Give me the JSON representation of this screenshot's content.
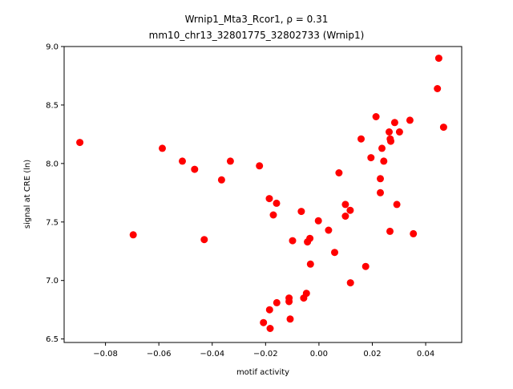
{
  "chart_data": {
    "type": "scatter",
    "title_lines": [
      "Wrnip1_Mta3_Rcor1, ρ = 0.31",
      "mm10_chr13_32801775_32802733 (Wrnip1)"
    ],
    "xlabel": "motif activity",
    "ylabel": "signal at CRE (ln)",
    "xlim": [
      -0.0955,
      0.0535
    ],
    "ylim": [
      6.47,
      9.0
    ],
    "xticks": [
      -0.08,
      -0.06,
      -0.04,
      -0.02,
      0.0,
      0.02,
      0.04
    ],
    "xtick_labels": [
      "−0.08",
      "−0.06",
      "−0.04",
      "−0.02",
      "0.00",
      "0.02",
      "0.04"
    ],
    "yticks": [
      6.5,
      7.0,
      7.5,
      8.0,
      8.5,
      9.0
    ],
    "ytick_labels": [
      "6.5",
      "7.0",
      "7.5",
      "8.0",
      "8.5",
      "9.0"
    ],
    "grid": false,
    "legend": "none",
    "color": "#ff0000",
    "points": [
      [
        -0.0896,
        8.18
      ],
      [
        -0.0696,
        7.39
      ],
      [
        -0.0587,
        8.13
      ],
      [
        -0.0512,
        8.02
      ],
      [
        -0.0466,
        7.95
      ],
      [
        -0.043,
        7.35
      ],
      [
        -0.0365,
        7.86
      ],
      [
        -0.0332,
        8.02
      ],
      [
        -0.0223,
        7.98
      ],
      [
        -0.0208,
        6.64
      ],
      [
        -0.0185,
        6.75
      ],
      [
        -0.0186,
        7.7
      ],
      [
        -0.0183,
        6.59
      ],
      [
        -0.0171,
        7.56
      ],
      [
        -0.0159,
        7.66
      ],
      [
        -0.0158,
        6.81
      ],
      [
        -0.0112,
        6.85
      ],
      [
        -0.0112,
        6.82
      ],
      [
        -0.0108,
        6.67
      ],
      [
        -0.0099,
        7.34
      ],
      [
        -0.0066,
        7.59
      ],
      [
        -0.0057,
        6.85
      ],
      [
        -0.0047,
        6.89
      ],
      [
        -0.0043,
        7.33
      ],
      [
        -0.0034,
        7.36
      ],
      [
        -0.0032,
        7.14
      ],
      [
        -0.0002,
        7.51
      ],
      [
        0.0036,
        7.43
      ],
      [
        0.0059,
        7.24
      ],
      [
        0.0075,
        7.92
      ],
      [
        0.0099,
        7.65
      ],
      [
        0.0099,
        7.55
      ],
      [
        0.0117,
        7.6
      ],
      [
        0.0118,
        6.98
      ],
      [
        0.0158,
        8.21
      ],
      [
        0.0175,
        7.12
      ],
      [
        0.0195,
        8.05
      ],
      [
        0.0214,
        8.4
      ],
      [
        0.023,
        7.87
      ],
      [
        0.023,
        7.75
      ],
      [
        0.0236,
        8.13
      ],
      [
        0.0243,
        8.02
      ],
      [
        0.0263,
        8.27
      ],
      [
        0.0266,
        7.42
      ],
      [
        0.0267,
        8.21
      ],
      [
        0.0269,
        8.19
      ],
      [
        0.0284,
        8.35
      ],
      [
        0.0292,
        7.65
      ],
      [
        0.0302,
        8.27
      ],
      [
        0.0341,
        8.37
      ],
      [
        0.0354,
        7.4
      ],
      [
        0.0444,
        8.64
      ],
      [
        0.0449,
        8.9
      ],
      [
        0.0467,
        8.31
      ]
    ]
  }
}
